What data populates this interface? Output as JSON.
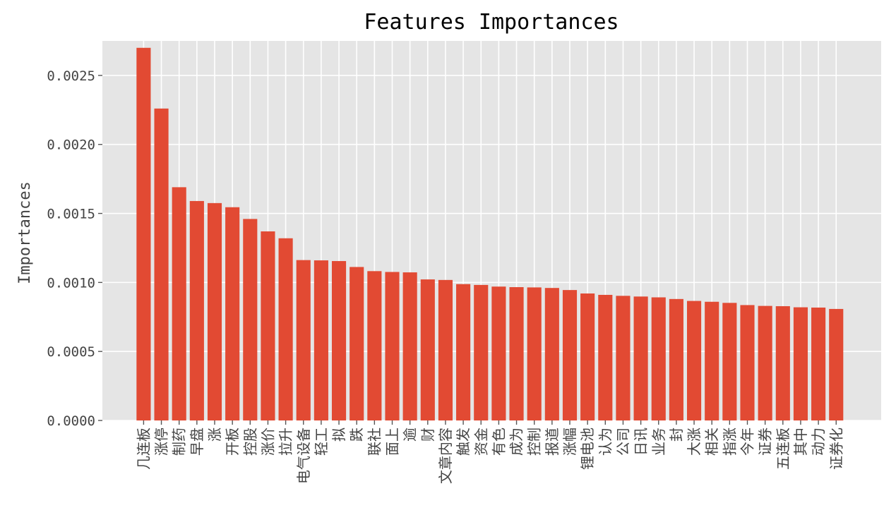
{
  "chart_data": {
    "type": "bar",
    "title": "Features Importances",
    "xlabel": "",
    "ylabel": "Importances",
    "ylim": [
      0,
      0.00275
    ],
    "yticks": [
      "0.0000",
      "0.0005",
      "0.0010",
      "0.0015",
      "0.0020",
      "0.0025"
    ],
    "ytick_values": [
      0,
      0.0005,
      0.001,
      0.0015,
      0.002,
      0.0025
    ],
    "grid": true,
    "bar_color": "#E24A33",
    "background_color": "#E5E5E5",
    "categories": [
      "几连板",
      "涨停",
      "制药",
      "早盘",
      "涨",
      "开板",
      "控股",
      "涨价",
      "拉升",
      "电气设备",
      "轻工",
      "拟",
      "跌",
      "联社",
      "面上",
      "逾",
      "财",
      "文章内容",
      "触发",
      "资金",
      "有色",
      "成为",
      "控制",
      "报道",
      "涨幅",
      "锂电池",
      "认为",
      "公司",
      "日讯",
      "业务",
      "封",
      "大涨",
      "相关",
      "指涨",
      "今年",
      "证券",
      "五连板",
      "其中",
      "动力",
      "证券化"
    ],
    "values": [
      0.0027,
      0.00226,
      0.00169,
      0.00159,
      0.001575,
      0.001545,
      0.00146,
      0.00137,
      0.00132,
      0.001162,
      0.00116,
      0.001155,
      0.001112,
      0.001082,
      0.001076,
      0.001073,
      0.001022,
      0.001018,
      0.000988,
      0.000982,
      0.00097,
      0.000966,
      0.000964,
      0.00096,
      0.000945,
      0.00092,
      0.00091,
      0.000903,
      0.000898,
      0.000892,
      0.00088,
      0.000866,
      0.00086,
      0.000852,
      0.000836,
      0.00083,
      0.000828,
      0.00082,
      0.000818,
      0.000808
    ]
  }
}
